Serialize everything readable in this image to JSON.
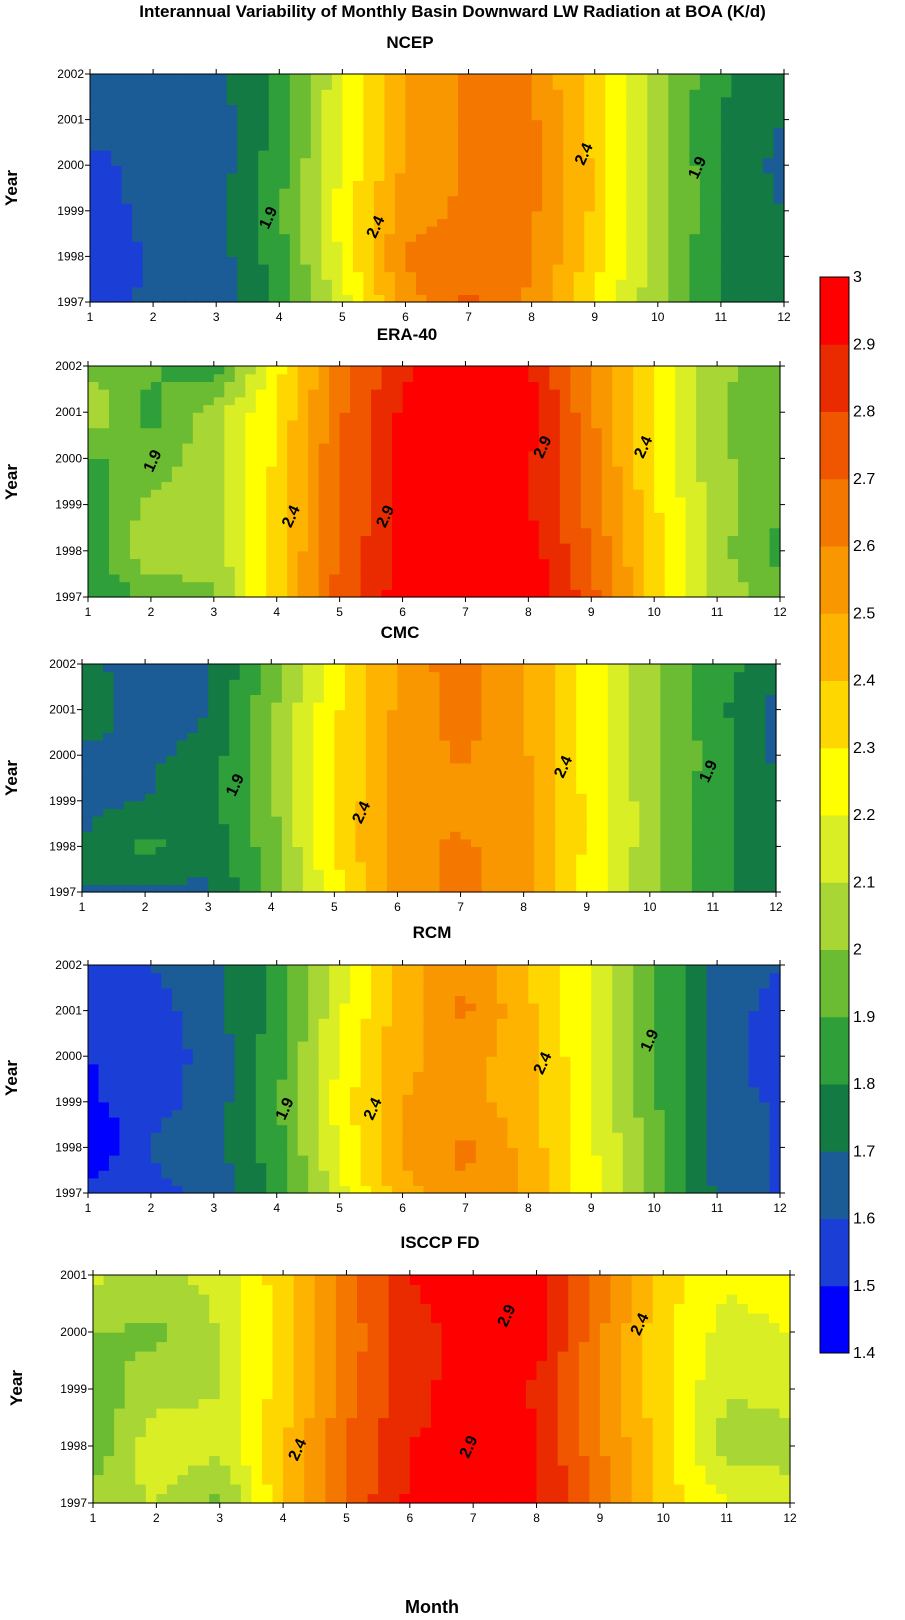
{
  "title": "Interannual Variability of Monthly Basin Downward LW Radiation at BOA  (K/d)",
  "xlabel": "Month",
  "colorbar": {
    "levels": [
      1.4,
      1.5,
      1.6,
      1.7,
      1.8,
      1.9,
      2,
      2.1,
      2.2,
      2.3,
      2.4,
      2.5,
      2.6,
      2.7,
      2.8,
      2.9,
      3
    ],
    "colors": [
      "#0000ff",
      "#1b3fd6",
      "#1b5b96",
      "#137a43",
      "#2f9f3a",
      "#6cbc33",
      "#a8d634",
      "#d9ee24",
      "#ffff00",
      "#fed600",
      "#fdb300",
      "#f99700",
      "#f47800",
      "#f05500",
      "#ea2b00",
      "#ff0000"
    ]
  },
  "chart_data": [
    {
      "type": "heatmap",
      "title": "NCEP",
      "ylabel": "Year",
      "x": [
        1,
        2,
        3,
        4,
        5,
        6,
        7,
        8,
        9,
        10,
        11,
        12
      ],
      "y": [
        1997,
        1998,
        1999,
        2000,
        2001,
        2002
      ],
      "xlim": [
        1,
        12
      ],
      "ylim": [
        1997,
        2002
      ],
      "contour_labels": [
        {
          "text": "1.9",
          "x": 3.9,
          "y": 1998.8
        },
        {
          "text": "2.4",
          "x": 5.6,
          "y": 1998.6
        },
        {
          "text": "2.4",
          "x": 8.9,
          "y": 2000.2
        },
        {
          "text": "1.9",
          "x": 10.7,
          "y": 1999.9
        }
      ],
      "values": [
        [
          1.55,
          1.62,
          1.62,
          1.82,
          2.15,
          2.55,
          2.72,
          2.58,
          2.3,
          2.02,
          1.8,
          1.72
        ],
        [
          1.52,
          1.62,
          1.65,
          1.86,
          2.22,
          2.62,
          2.66,
          2.62,
          2.34,
          2.04,
          1.78,
          1.7
        ],
        [
          1.55,
          1.63,
          1.66,
          1.88,
          2.26,
          2.55,
          2.62,
          2.62,
          2.38,
          2.06,
          1.8,
          1.7
        ],
        [
          1.57,
          1.64,
          1.64,
          1.86,
          2.2,
          2.52,
          2.62,
          2.64,
          2.38,
          2.04,
          1.8,
          1.66
        ],
        [
          1.64,
          1.6,
          1.65,
          1.84,
          2.2,
          2.52,
          2.62,
          2.62,
          2.36,
          2.02,
          1.8,
          1.7
        ],
        [
          1.7,
          1.66,
          1.66,
          1.84,
          2.18,
          2.52,
          2.62,
          2.6,
          2.34,
          2.02,
          1.82,
          1.7
        ]
      ]
    },
    {
      "type": "heatmap",
      "title": "ERA-40",
      "ylabel": "Year",
      "x": [
        1,
        2,
        3,
        4,
        5,
        6,
        7,
        8,
        9,
        10,
        11,
        12
      ],
      "y": [
        1997,
        1998,
        1999,
        2000,
        2001,
        2002
      ],
      "xlim": [
        1,
        12
      ],
      "ylim": [
        1997,
        2002
      ],
      "contour_labels": [
        {
          "text": "1.9",
          "x": 2.1,
          "y": 1999.9
        },
        {
          "text": "2.4",
          "x": 4.3,
          "y": 1998.7
        },
        {
          "text": "2.9",
          "x": 5.8,
          "y": 1998.7
        },
        {
          "text": "2.9",
          "x": 8.3,
          "y": 2000.2
        },
        {
          "text": "2.4",
          "x": 9.9,
          "y": 2000.2
        }
      ],
      "values": [
        [
          1.8,
          1.92,
          1.98,
          2.36,
          2.74,
          2.96,
          3.02,
          3.0,
          2.74,
          2.36,
          2.06,
          1.96
        ],
        [
          1.82,
          2.1,
          2.04,
          2.34,
          2.72,
          2.92,
          2.96,
          2.96,
          2.7,
          2.34,
          2.04,
          1.86
        ],
        [
          1.86,
          2.02,
          2.06,
          2.34,
          2.7,
          2.92,
          2.9,
          2.9,
          2.66,
          2.32,
          2.04,
          1.92
        ],
        [
          1.88,
          1.94,
          2.06,
          2.32,
          2.7,
          2.92,
          2.96,
          2.92,
          2.64,
          2.3,
          2.02,
          1.94
        ],
        [
          2.1,
          1.86,
          2.06,
          2.3,
          2.68,
          2.92,
          3.02,
          2.94,
          2.62,
          2.3,
          2.02,
          1.9
        ],
        [
          1.96,
          1.92,
          1.82,
          2.26,
          2.64,
          2.88,
          2.96,
          2.92,
          2.62,
          2.28,
          2.02,
          1.96
        ]
      ]
    },
    {
      "type": "heatmap",
      "title": "CMC",
      "ylabel": "Year",
      "x": [
        1,
        2,
        3,
        4,
        5,
        6,
        7,
        8,
        9,
        10,
        11,
        12
      ],
      "y": [
        1997,
        1998,
        1999,
        2000,
        2001,
        2002
      ],
      "xlim": [
        1,
        12
      ],
      "ylim": [
        1997,
        2002
      ],
      "contour_labels": [
        {
          "text": "1.9",
          "x": 3.5,
          "y": 1999.3
        },
        {
          "text": "2.4",
          "x": 5.5,
          "y": 1998.7
        },
        {
          "text": "2.4",
          "x": 8.7,
          "y": 1999.7
        },
        {
          "text": "1.9",
          "x": 11.0,
          "y": 1999.6
        }
      ],
      "values": [
        [
          1.7,
          1.68,
          1.68,
          1.94,
          2.26,
          2.54,
          2.64,
          2.52,
          2.26,
          2.02,
          1.82,
          1.76
        ],
        [
          1.7,
          1.84,
          1.72,
          1.96,
          2.3,
          2.56,
          2.62,
          2.54,
          2.28,
          2.04,
          1.84,
          1.74
        ],
        [
          1.68,
          1.7,
          1.76,
          1.98,
          2.3,
          2.54,
          2.56,
          2.54,
          2.28,
          2.04,
          1.84,
          1.74
        ],
        [
          1.66,
          1.68,
          1.74,
          1.98,
          2.3,
          2.52,
          2.62,
          2.52,
          2.26,
          2.04,
          1.86,
          1.68
        ],
        [
          1.82,
          1.6,
          1.7,
          1.98,
          2.28,
          2.52,
          2.64,
          2.52,
          2.26,
          2.04,
          1.84,
          1.66
        ],
        [
          1.72,
          1.66,
          1.68,
          1.94,
          2.26,
          2.52,
          2.66,
          2.5,
          2.26,
          2.04,
          1.84,
          1.76
        ]
      ]
    },
    {
      "type": "heatmap",
      "title": "RCM",
      "ylabel": "Year",
      "x": [
        1,
        2,
        3,
        4,
        5,
        6,
        7,
        8,
        9,
        10,
        11,
        12
      ],
      "y": [
        1997,
        1998,
        1999,
        2000,
        2001,
        2002
      ],
      "xlim": [
        1,
        12
      ],
      "ylim": [
        1997,
        2002
      ],
      "contour_labels": [
        {
          "text": "1.9",
          "x": 4.2,
          "y": 1998.8
        },
        {
          "text": "2.4",
          "x": 5.6,
          "y": 1998.8
        },
        {
          "text": "2.4",
          "x": 8.3,
          "y": 1999.8
        },
        {
          "text": "1.9",
          "x": 10.0,
          "y": 2000.3
        }
      ],
      "values": [
        [
          1.56,
          1.56,
          1.64,
          1.82,
          2.16,
          2.46,
          2.6,
          2.48,
          2.24,
          1.96,
          1.68,
          1.58
        ],
        [
          1.38,
          1.62,
          1.66,
          1.86,
          2.22,
          2.52,
          2.62,
          2.46,
          2.22,
          1.94,
          1.66,
          1.58
        ],
        [
          1.48,
          1.56,
          1.64,
          1.88,
          2.24,
          2.5,
          2.54,
          2.44,
          2.22,
          1.92,
          1.66,
          1.58
        ],
        [
          1.5,
          1.54,
          1.64,
          1.86,
          2.22,
          2.48,
          2.54,
          2.44,
          2.2,
          1.92,
          1.66,
          1.52
        ],
        [
          1.58,
          1.56,
          1.66,
          1.84,
          2.18,
          2.46,
          2.62,
          2.42,
          2.2,
          1.92,
          1.66,
          1.56
        ],
        [
          1.6,
          1.6,
          1.66,
          1.84,
          2.14,
          2.44,
          2.6,
          2.4,
          2.18,
          1.92,
          1.66,
          1.6
        ]
      ]
    },
    {
      "type": "heatmap",
      "title": "ISCCP FD",
      "ylabel": "Year",
      "x": [
        1,
        2,
        3,
        4,
        5,
        6,
        7,
        8,
        9,
        10,
        11,
        12
      ],
      "y": [
        1997,
        1998,
        1999,
        2000,
        2001
      ],
      "xlim": [
        1,
        12
      ],
      "ylim": [
        1997,
        2001
      ],
      "contour_labels": [
        {
          "text": "2.4",
          "x": 4.3,
          "y": 1997.9
        },
        {
          "text": "2.9",
          "x": 7.0,
          "y": 1997.95
        },
        {
          "text": "2.9",
          "x": 7.6,
          "y": 2000.25
        },
        {
          "text": "2.4",
          "x": 9.7,
          "y": 2000.1
        }
      ],
      "values": [
        [
          2.06,
          2.1,
          1.96,
          2.4,
          2.72,
          2.92,
          2.98,
          2.92,
          2.66,
          2.36,
          2.2,
          2.2
        ],
        [
          1.92,
          2.18,
          2.12,
          2.38,
          2.7,
          2.9,
          2.94,
          2.92,
          2.62,
          2.34,
          2.06,
          2.02
        ],
        [
          1.94,
          2.06,
          2.1,
          2.36,
          2.66,
          2.86,
          2.96,
          2.88,
          2.6,
          2.32,
          2.1,
          2.16
        ],
        [
          2.0,
          1.98,
          2.1,
          2.34,
          2.64,
          2.86,
          2.94,
          2.96,
          2.62,
          2.32,
          2.16,
          2.2
        ],
        [
          2.12,
          2.06,
          2.14,
          2.36,
          2.66,
          2.9,
          3.0,
          2.98,
          2.64,
          2.36,
          2.22,
          2.26
        ]
      ]
    }
  ]
}
